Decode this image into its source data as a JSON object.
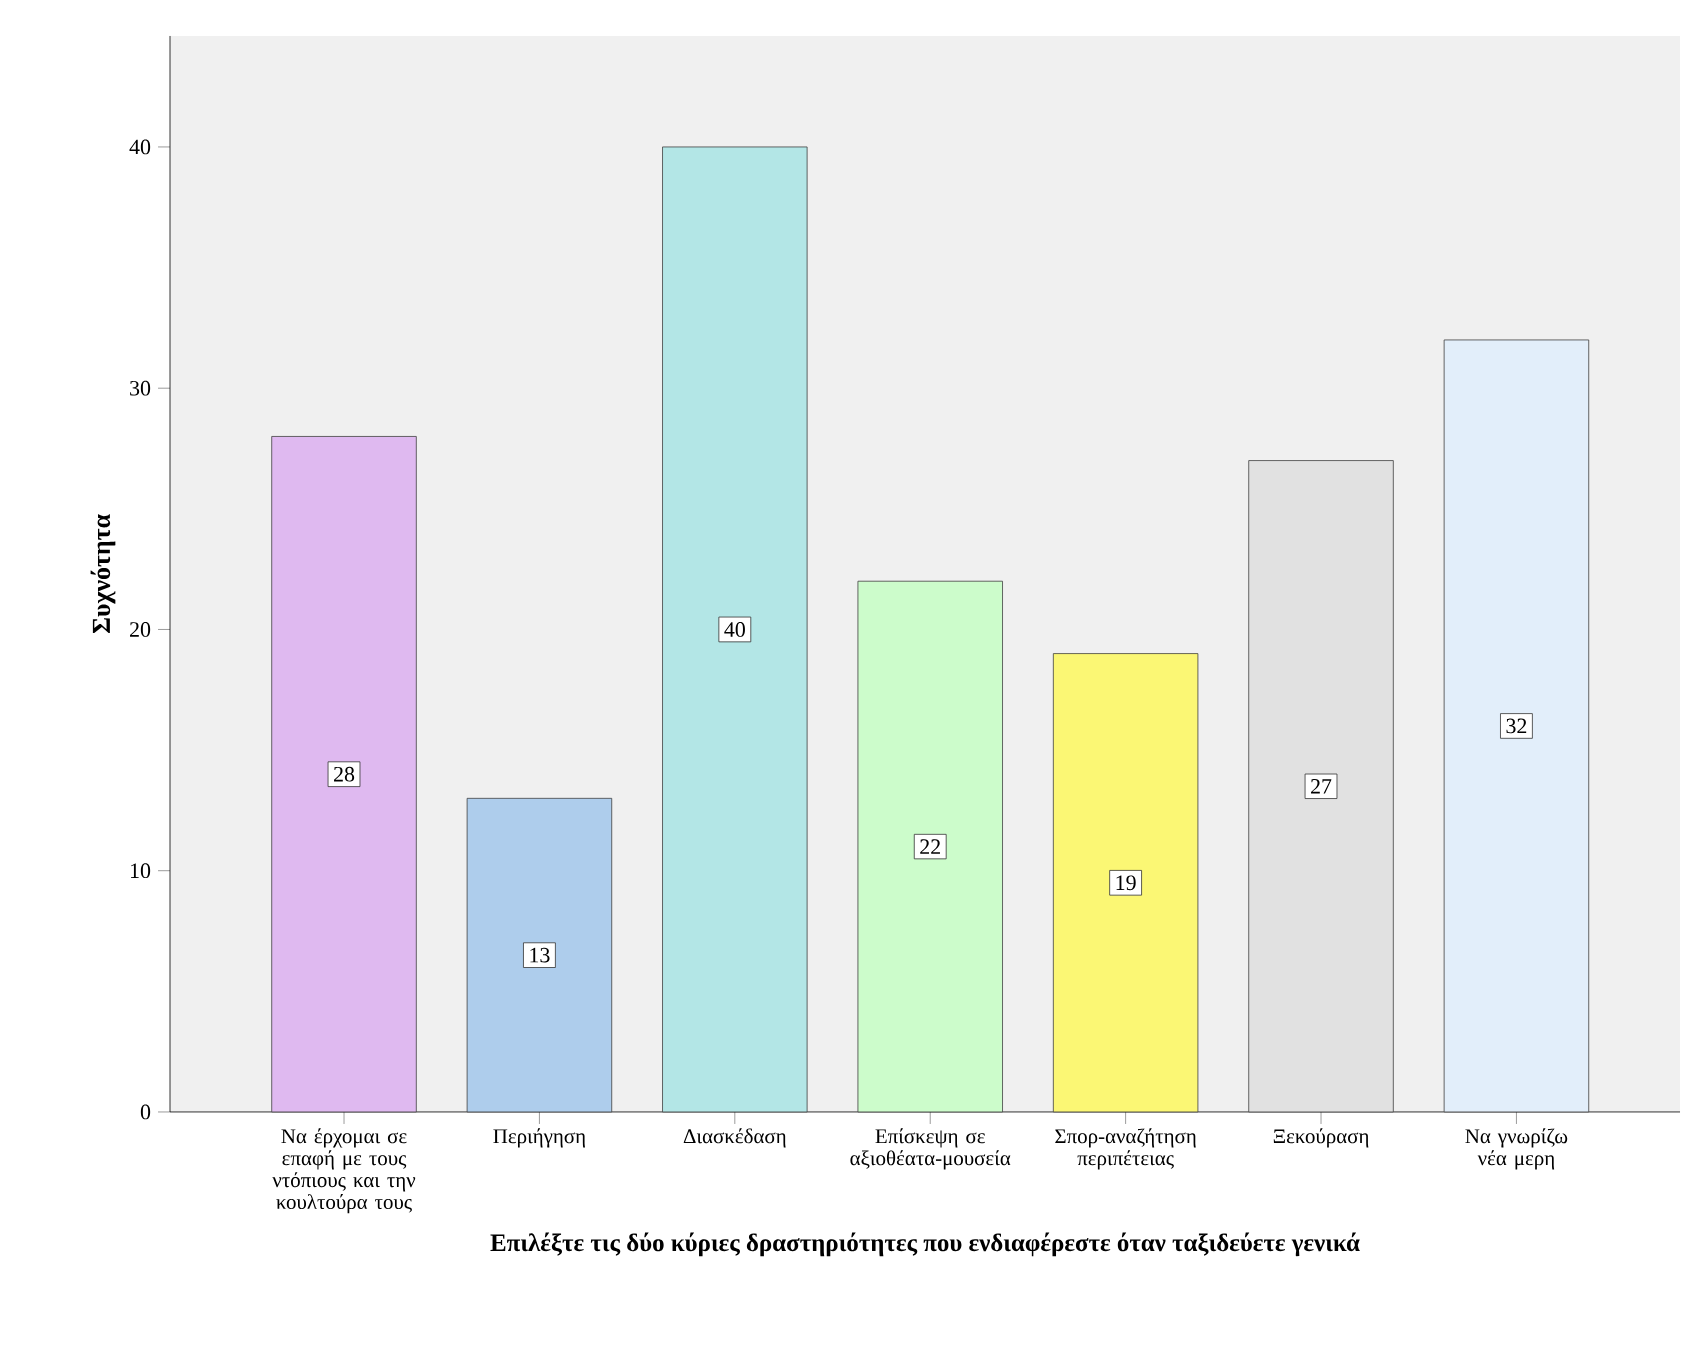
{
  "chart_data": {
    "type": "bar",
    "xlabel": "Επιλέξτε τις δύο κύριες δραστηριότητες που ενδιαφέρεστε όταν ταξιδεύετε γενικά",
    "ylabel": "Συχνότητα",
    "categories": [
      "Να έρχομαι σε επαφή με τους ντόπιους και την κουλτούρα τους",
      "Περιήγηση",
      "Διασκέδαση",
      "Επίσκεψη σε αξιοθέατα-μουσεία",
      "Σπορ-αναζήτηση περιπέτειας",
      "Ξεκούραση",
      "Να γνωρίζω νέα μερη"
    ],
    "values": [
      28,
      13,
      40,
      22,
      19,
      27,
      32
    ],
    "colors": [
      "#dfb9f0",
      "#aecdec",
      "#b3e6e6",
      "#ccfccb",
      "#fbf774",
      "#e1e1e1",
      "#e2eefa"
    ],
    "ylim": [
      0,
      44.6
    ],
    "yticks": [
      0,
      10,
      20,
      30,
      40
    ],
    "data_labels": true
  }
}
